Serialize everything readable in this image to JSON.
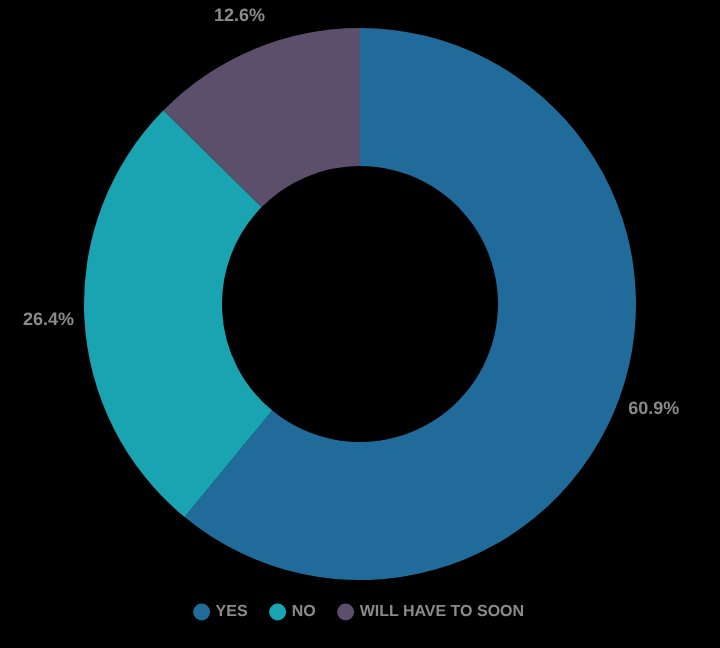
{
  "chart_data": {
    "type": "donut",
    "categories": [
      "YES",
      "NO",
      "WILL HAVE TO SOON"
    ],
    "values": [
      60.9,
      26.4,
      12.6
    ],
    "colors": [
      "#216b9b",
      "#1aa3b1",
      "#5b4f6b"
    ],
    "value_labels": [
      "60.9%",
      "26.4%",
      "12.6%"
    ],
    "legend": "bottom"
  }
}
